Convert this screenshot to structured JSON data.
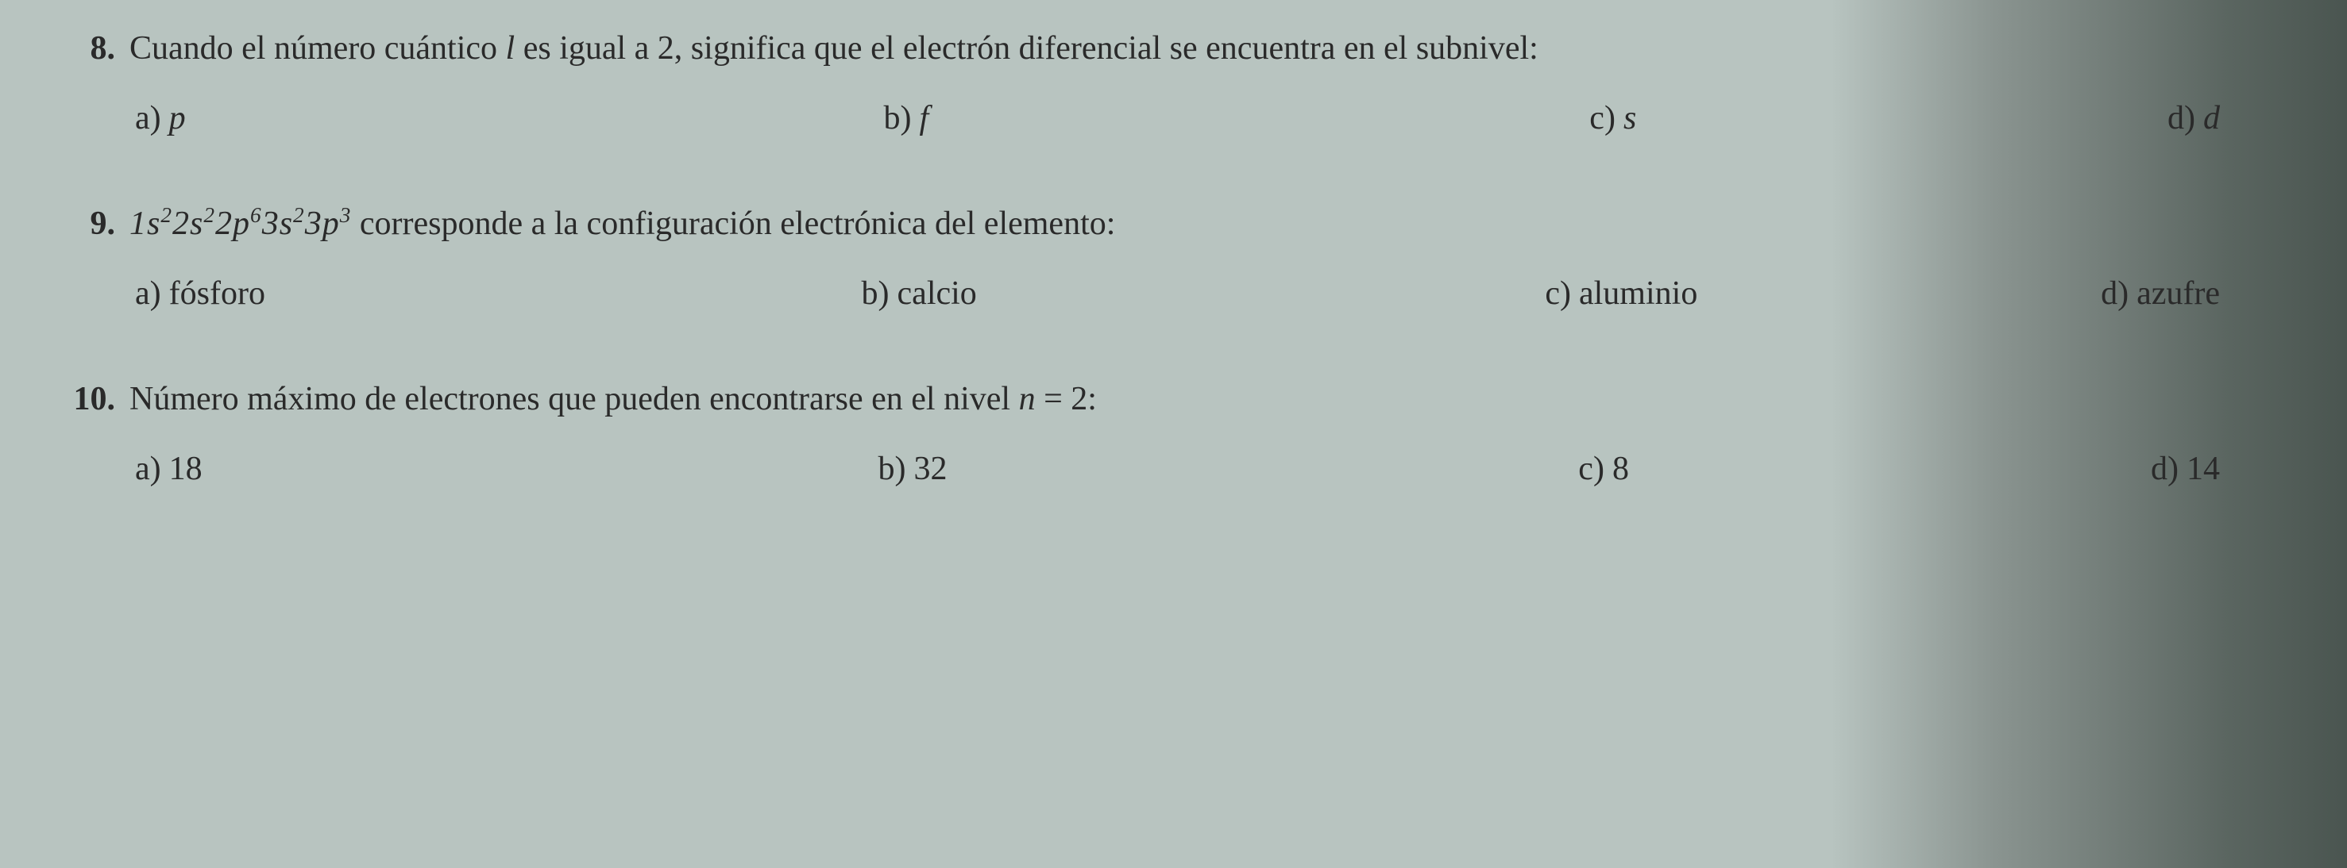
{
  "text_color": "#2a2a2a",
  "background_color": "#b8c4c0",
  "font_family": "Georgia, Times New Roman, serif",
  "base_fontsize_pt": 32,
  "questions": [
    {
      "number": "8.",
      "stem_prefix": "Cuando el número cuántico ",
      "stem_var": "l",
      "stem_suffix": " es igual a 2, significa que el electrón diferencial se encuentra en el subnivel:",
      "options": {
        "a": {
          "label": "a)",
          "value": "p"
        },
        "b": {
          "label": "b)",
          "value": "f"
        },
        "c": {
          "label": "c)",
          "value": "s"
        },
        "d": {
          "label": "d)",
          "value": "d"
        }
      }
    },
    {
      "number": "9.",
      "formula_parts": [
        "1s",
        "2",
        "2s",
        "2",
        "2p",
        "6",
        "3s",
        "2",
        "3p",
        "3"
      ],
      "stem_suffix": " corresponde a la configuración electrónica del elemento:",
      "options": {
        "a": {
          "label": "a)",
          "value": "fósforo"
        },
        "b": {
          "label": "b)",
          "value": "calcio"
        },
        "c": {
          "label": "c)",
          "value": "aluminio"
        },
        "d": {
          "label": "d)",
          "value": "azufre"
        }
      }
    },
    {
      "number": "10.",
      "stem_prefix": "Número máximo de electrones que pueden encontrarse en el nivel ",
      "stem_var": "n",
      "stem_equals": " = 2:",
      "options": {
        "a": {
          "label": "a)",
          "value": "18"
        },
        "b": {
          "label": "b)",
          "value": "32"
        },
        "c": {
          "label": "c)",
          "value": "8"
        },
        "d": {
          "label": "d)",
          "value": "14"
        }
      }
    }
  ]
}
